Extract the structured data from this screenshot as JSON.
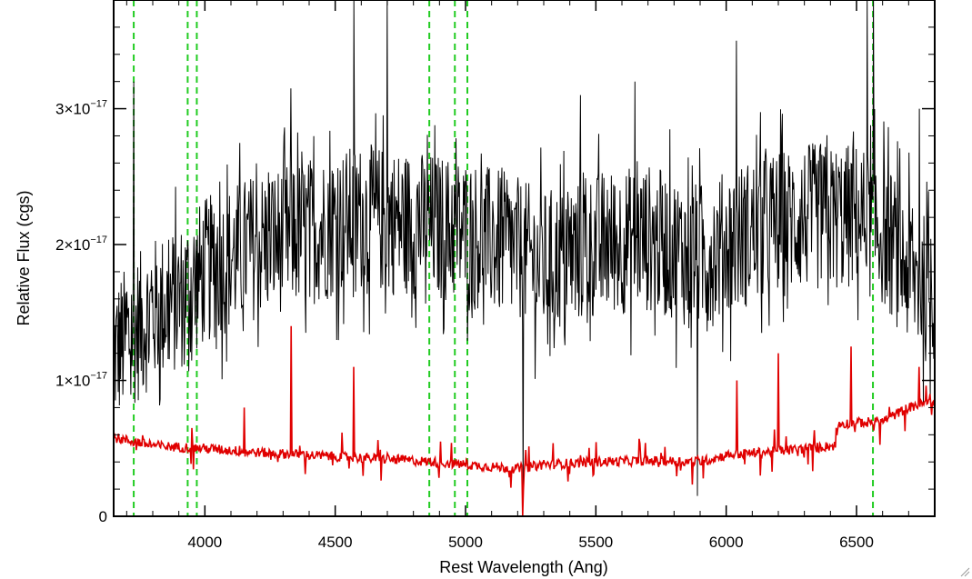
{
  "chart_data": {
    "type": "line",
    "title": "",
    "xlabel": "Rest Wavelength (Ang)",
    "ylabel": "Relative Flux (cgs)",
    "xlim": [
      3650,
      6800
    ],
    "ylim": [
      0,
      3.8e-17
    ],
    "x_ticks": [
      {
        "value": 4000,
        "label": "4000"
      },
      {
        "value": 4500,
        "label": "4500"
      },
      {
        "value": 5000,
        "label": "5000"
      },
      {
        "value": 5500,
        "label": "5500"
      },
      {
        "value": 6000,
        "label": "6000"
      },
      {
        "value": 6500,
        "label": "6500"
      }
    ],
    "y_ticks": [
      {
        "value": 0,
        "mantissa": "0",
        "exponent": ""
      },
      {
        "value": 1e-17,
        "mantissa": "1×10",
        "exponent": "−17"
      },
      {
        "value": 2e-17,
        "mantissa": "2×10",
        "exponent": "−17"
      },
      {
        "value": 3e-17,
        "mantissa": "3×10",
        "exponent": "−17"
      }
    ],
    "grid": false,
    "series": [
      {
        "role": "spectrum",
        "color": "#000000",
        "noise_amplitude": 5.5e-18,
        "baseline": {
          "x": [
            3650,
            3700,
            3800,
            3900,
            4000,
            4100,
            4200,
            4400,
            4600,
            4800,
            5000,
            5200,
            5300,
            5500,
            5700,
            5900,
            6100,
            6300,
            6500,
            6600,
            6700,
            6800
          ],
          "y": [
            1.2e-17,
            1.3e-17,
            1.5e-17,
            1.6e-17,
            1.8e-17,
            1.9e-17,
            2e-17,
            2.1e-17,
            2.2e-17,
            2.15e-17,
            2.1e-17,
            1.95e-17,
            1.85e-17,
            2e-17,
            2.05e-17,
            1.9e-17,
            2.1e-17,
            2.2e-17,
            2.2e-17,
            2.1e-17,
            1.8e-17,
            1.6e-17
          ]
        },
        "spikes": [
          {
            "x": 3728,
            "y": 3.2e-17
          },
          {
            "x": 4330,
            "y": 3.15e-17
          },
          {
            "x": 4572,
            "y": 3.8e-17
          },
          {
            "x": 4700,
            "y": 3.8e-17
          },
          {
            "x": 5220,
            "y": 2e-18
          },
          {
            "x": 5440,
            "y": 3.1e-17
          },
          {
            "x": 5650,
            "y": 3.2e-17
          },
          {
            "x": 5890,
            "y": 1.5e-18
          },
          {
            "x": 6040,
            "y": 3.5e-17
          },
          {
            "x": 6540,
            "y": 3.8e-17
          },
          {
            "x": 6565,
            "y": 3.8e-17
          },
          {
            "x": 6740,
            "y": 3e-17
          },
          {
            "x": 6800,
            "y": 1.6e-17
          }
        ]
      },
      {
        "role": "error",
        "color": "#e00000",
        "noise_amplitude": 6e-19,
        "baseline": {
          "x": [
            3650,
            3800,
            4000,
            4200,
            4400,
            4600,
            4800,
            5000,
            5200,
            5300,
            5500,
            5700,
            5900,
            6000,
            6200,
            6420,
            6430,
            6600,
            6700,
            6800
          ],
          "y": [
            5.8e-18,
            5.2e-18,
            5e-18,
            4.7e-18,
            4.5e-18,
            4.3e-18,
            4.1e-18,
            3.8e-18,
            3.5e-18,
            3.8e-18,
            4e-18,
            4.1e-18,
            4e-18,
            4.5e-18,
            4.8e-18,
            5.2e-18,
            6.8e-18,
            7e-18,
            8e-18,
            8.5e-18
          ]
        },
        "spikes": [
          {
            "x": 4150,
            "y": 8e-18
          },
          {
            "x": 4330,
            "y": 1.4e-17
          },
          {
            "x": 4572,
            "y": 1.1e-17
          },
          {
            "x": 5220,
            "y": 0.0
          },
          {
            "x": 6040,
            "y": 1e-17
          },
          {
            "x": 6200,
            "y": 1.2e-17
          },
          {
            "x": 6480,
            "y": 1.25e-17
          },
          {
            "x": 6740,
            "y": 1.1e-17
          }
        ]
      }
    ],
    "reference_lines": {
      "color": "#22cc22",
      "style": "dashed",
      "x": [
        3727,
        3934,
        3969,
        4861,
        4959,
        5007,
        6563
      ]
    }
  }
}
